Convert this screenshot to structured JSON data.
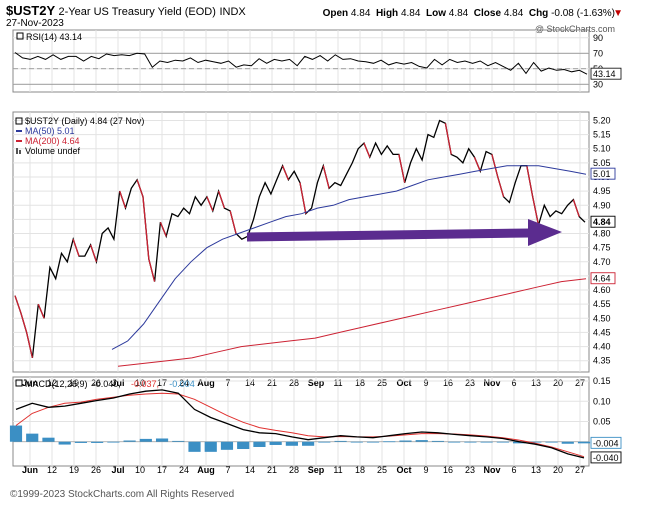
{
  "header": {
    "symbol": "$UST2Y",
    "description": "2-Year US Treasury Yield (EOD)",
    "exchange": "INDX",
    "date": "27-Nov-2023",
    "open_label": "Open",
    "open": "4.84",
    "high_label": "High",
    "high": "4.84",
    "low_label": "Low",
    "low": "4.84",
    "close_label": "Close",
    "close": "4.84",
    "chg_label": "Chg",
    "chg": "-0.08 (-1.63%)",
    "chg_marker": "▼",
    "watermark": "@ StockCharts.com"
  },
  "footer": "©1999-2023 StockCharts.com All Rights Reserved",
  "colors": {
    "price": "#000000",
    "ma50": "#2d3a9c",
    "ma200": "#cc2233",
    "arrow": "#5b2c8f",
    "macd_hist": "#3b8fc4",
    "macd_signal": "#e0312f"
  },
  "x_labels": [
    "Jun",
    "12",
    "19",
    "26",
    "Jul",
    "10",
    "17",
    "24",
    "Aug",
    "7",
    "14",
    "21",
    "28",
    "Sep",
    "11",
    "18",
    "25",
    "Oct",
    "9",
    "16",
    "23",
    "Nov",
    "6",
    "13",
    "20",
    "27"
  ],
  "chart_data": [
    {
      "type": "line",
      "panel": "rsi",
      "title": "RSI(14) 43.14",
      "y_ticks": [
        "90",
        "70",
        "50",
        "30"
      ],
      "ylim": [
        20,
        100
      ],
      "reference_lines": [
        70,
        50,
        30
      ],
      "last_value_label": "43.14",
      "values": [
        71,
        64,
        62,
        66,
        62,
        68,
        62,
        66,
        66,
        60,
        66,
        63,
        69,
        67,
        68,
        67,
        70,
        69,
        52,
        60,
        58,
        61,
        60,
        64,
        58,
        61,
        59,
        57,
        60,
        52,
        55,
        54,
        63,
        57,
        62,
        60,
        62,
        54,
        66,
        62,
        67,
        60,
        68,
        62,
        63,
        60,
        59,
        57,
        61,
        55,
        58,
        56,
        58,
        53,
        51,
        62,
        55,
        62,
        58,
        60,
        57,
        60,
        54,
        58,
        53,
        48,
        57,
        44,
        58,
        47,
        51,
        48,
        49,
        46,
        48,
        43
      ]
    },
    {
      "type": "line",
      "panel": "price",
      "legend": [
        {
          "name": "$UST2Y (Daily) 4.84 (27 Nov)",
          "color": "#000000"
        },
        {
          "name": "MA(50) 5.01",
          "color": "#2d3a9c"
        },
        {
          "name": "MA(200) 4.64",
          "color": "#cc2233"
        },
        {
          "name": "Volume undef",
          "color": "#555555"
        }
      ],
      "y_ticks": [
        "5.20",
        "5.15",
        "5.10",
        "5.05",
        "5.00",
        "4.95",
        "4.90",
        "4.85",
        "4.80",
        "4.75",
        "4.70",
        "4.65",
        "4.60",
        "4.55",
        "4.50",
        "4.45",
        "4.40",
        "4.35"
      ],
      "ylim": [
        4.31,
        5.23
      ],
      "last_value_labels": {
        "ma50": "5.01",
        "close": "4.84",
        "ma200": "4.64"
      },
      "series": [
        {
          "name": "$UST2Y (Daily) 4.84 (27 Nov)",
          "values": [
            4.58,
            4.52,
            4.45,
            4.36,
            4.55,
            4.5,
            4.68,
            4.64,
            4.73,
            4.7,
            4.78,
            4.72,
            4.72,
            4.76,
            4.7,
            4.8,
            4.82,
            4.78,
            4.95,
            4.89,
            4.96,
            4.99,
            4.93,
            4.71,
            4.63,
            4.84,
            4.79,
            4.87,
            4.86,
            4.89,
            4.87,
            4.93,
            4.9,
            4.93,
            4.88,
            4.95,
            4.89,
            4.88,
            4.8,
            4.78,
            4.79,
            4.85,
            4.93,
            4.98,
            4.94,
            4.99,
            5.04,
            4.99,
            5.02,
            4.98,
            4.87,
            4.89,
            4.98,
            5.04,
            4.96,
            4.98,
            4.97,
            5.01,
            5.05,
            5.1,
            5.12,
            5.07,
            5.12,
            5.08,
            5.11,
            5.08,
            5.08,
            4.98,
            5.05,
            5.1,
            5.06,
            5.15,
            5.14,
            5.2,
            5.19,
            5.08,
            5.07,
            5.05,
            5.1,
            5.07,
            5.02,
            5.09,
            5.08,
            5.0,
            4.93,
            4.91,
            4.98,
            5.04,
            5.04,
            4.93,
            4.83,
            4.9,
            4.86,
            4.88,
            4.87,
            4.9,
            4.92,
            4.86,
            4.84
          ]
        },
        {
          "name": "MA(50) 5.01",
          "values": [
            4.39,
            4.42,
            4.48,
            4.56,
            4.64,
            4.7,
            4.75,
            4.78,
            4.8,
            4.82,
            4.84,
            4.86,
            4.87,
            4.89,
            4.9,
            4.92,
            4.93,
            4.94,
            4.95,
            4.97,
            4.99,
            5.0,
            5.01,
            5.02,
            5.03,
            5.04,
            5.04,
            5.04,
            5.03,
            5.02,
            5.01
          ]
        },
        {
          "name": "MA(200) 4.64",
          "values": [
            4.33,
            4.34,
            4.35,
            4.36,
            4.38,
            4.4,
            4.41,
            4.42,
            4.43,
            4.45,
            4.47,
            4.49,
            4.51,
            4.53,
            4.55,
            4.57,
            4.59,
            4.61,
            4.63,
            4.64
          ]
        }
      ]
    },
    {
      "type": "line",
      "panel": "macd",
      "title": "MACD(12,26,9) -0.040, -0.037, -0.004",
      "title_parts": [
        "MACD(12,26,9)",
        "-0.040,",
        "-0.037,",
        "-0.004"
      ],
      "y_ticks": [
        "0.15",
        "0.10",
        "0.05"
      ],
      "ylim": [
        -0.06,
        0.16
      ],
      "last_value_labels": {
        "histogram": "-0.004",
        "macd": "-0.040"
      },
      "series": [
        {
          "name": "MACD",
          "values": [
            0.08,
            0.095,
            0.085,
            0.088,
            0.095,
            0.102,
            0.108,
            0.118,
            0.125,
            0.128,
            0.12,
            0.08,
            0.06,
            0.045,
            0.03,
            0.022,
            0.02,
            0.012,
            0.005,
            0.01,
            0.015,
            0.012,
            0.01,
            0.015,
            0.02,
            0.024,
            0.022,
            0.018,
            0.015,
            0.012,
            0.008,
            0.0,
            -0.006,
            -0.015,
            -0.03,
            -0.04
          ]
        },
        {
          "name": "Signal",
          "values": [
            0.04,
            0.07,
            0.085,
            0.095,
            0.098,
            0.105,
            0.11,
            0.115,
            0.118,
            0.12,
            0.118,
            0.105,
            0.085,
            0.065,
            0.048,
            0.035,
            0.028,
            0.022,
            0.015,
            0.012,
            0.013,
            0.012,
            0.012,
            0.014,
            0.017,
            0.02,
            0.02,
            0.019,
            0.017,
            0.014,
            0.01,
            0.004,
            -0.004,
            -0.013,
            -0.025,
            -0.037
          ]
        },
        {
          "name": "Histogram",
          "values": [
            0.04,
            0.02,
            0.01,
            -0.007,
            -0.003,
            -0.003,
            -0.002,
            0.003,
            0.007,
            0.008,
            0.002,
            -0.025,
            -0.025,
            -0.02,
            -0.018,
            -0.013,
            -0.008,
            -0.01,
            -0.01,
            -0.002,
            0.002,
            0.0,
            -0.002,
            0.001,
            0.003,
            0.004,
            0.002,
            -0.001,
            -0.002,
            -0.002,
            -0.002,
            -0.004,
            -0.002,
            -0.002,
            -0.005,
            -0.004
          ]
        }
      ]
    }
  ]
}
